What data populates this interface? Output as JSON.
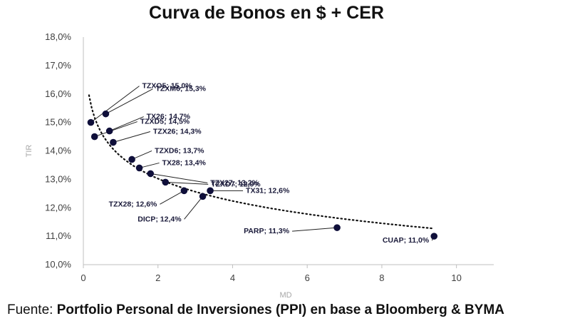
{
  "chart_data": {
    "type": "scatter",
    "title": "Curva de Bonos en $ + CER",
    "xlabel": "MD",
    "ylabel": "TIR",
    "xlim": [
      0,
      11
    ],
    "ylim": [
      10,
      18
    ],
    "x_ticks": [
      "0",
      "2",
      "4",
      "6",
      "8",
      "10"
    ],
    "y_ticks": [
      "10,0%",
      "11,0%",
      "12,0%",
      "13,0%",
      "14,0%",
      "15,0%",
      "16,0%",
      "17,0%",
      "18,0%"
    ],
    "grid": false,
    "legend": "none",
    "trendline": "logarithmic, dotted",
    "marker_color": "#0f0f3a",
    "points": [
      {
        "name": "TZXO5",
        "x": 0.2,
        "y": 15.0,
        "label": "TZXO5; 15,0%"
      },
      {
        "name": "TZXM6",
        "x": 0.6,
        "y": 15.3,
        "label": "TZXM6; 15,3%"
      },
      {
        "name": "TZXD5",
        "x": 0.3,
        "y": 14.5,
        "label": "TZXD5; 14,5%"
      },
      {
        "name": "TX26",
        "x": 0.7,
        "y": 14.7,
        "label": "TX26; 14,7%"
      },
      {
        "name": "TZX26",
        "x": 0.8,
        "y": 14.3,
        "label": "TZX26; 14,3%"
      },
      {
        "name": "TZXD6",
        "x": 1.3,
        "y": 13.7,
        "label": "TZXD6; 13,7%"
      },
      {
        "name": "TX28",
        "x": 1.5,
        "y": 13.4,
        "label": "TX28; 13,4%"
      },
      {
        "name": "TZX27",
        "x": 1.8,
        "y": 13.2,
        "label": "TZX27; 13,2%"
      },
      {
        "name": "TZXD7",
        "x": 2.2,
        "y": 12.9,
        "label": "TZXD7; 12,9%"
      },
      {
        "name": "TZX28",
        "x": 2.7,
        "y": 12.6,
        "label": "TZX28; 12,6%"
      },
      {
        "name": "DICP",
        "x": 3.2,
        "y": 12.4,
        "label": "DICP; 12,4%"
      },
      {
        "name": "TX31",
        "x": 3.4,
        "y": 12.6,
        "label": "TX31; 12,6%"
      },
      {
        "name": "PARP",
        "x": 6.8,
        "y": 11.3,
        "label": "PARP; 11,3%"
      },
      {
        "name": "CUAP",
        "x": 9.4,
        "y": 11.0,
        "label": "CUAP; 11,0%"
      }
    ]
  },
  "source": {
    "prefix": "Fuente: ",
    "text": "Portfolio Personal de Inversiones (PPI) en base a Bloomberg & BYMA"
  }
}
